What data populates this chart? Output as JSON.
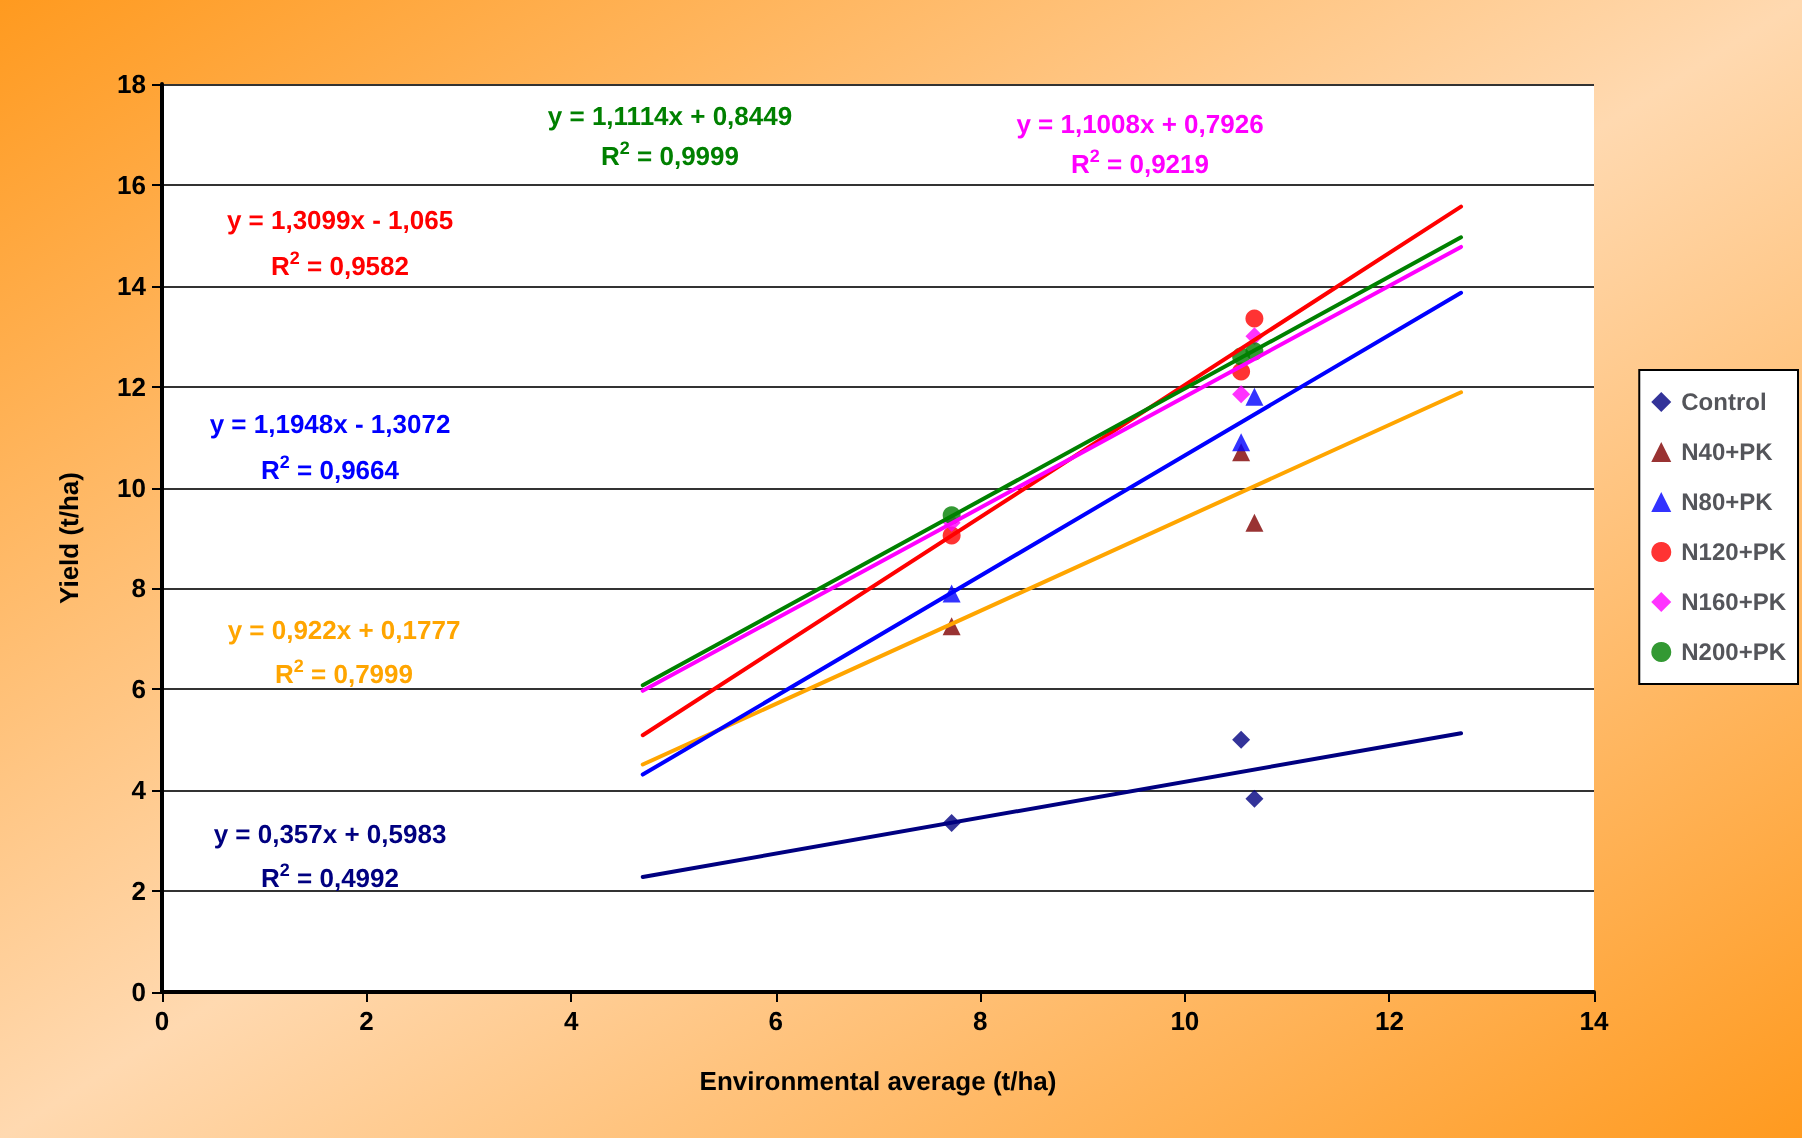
{
  "chart_data": {
    "type": "scatter",
    "xlabel": "Environmental average (t/ha)",
    "ylabel": "Yield (t/ha)",
    "xlim": [
      0,
      14
    ],
    "xticks": [
      0,
      2,
      4,
      6,
      8,
      10,
      12,
      14
    ],
    "ylim": [
      0,
      18
    ],
    "yticks": [
      0,
      2,
      4,
      6,
      8,
      10,
      12,
      14,
      16,
      18
    ],
    "grid": "y",
    "legend": "right",
    "series": [
      {
        "name": "Control",
        "marker": "diamond",
        "color": "#000080",
        "x": [
          7.72,
          10.55,
          10.68
        ],
        "values": [
          3.35,
          5.0,
          3.83
        ]
      },
      {
        "name": "N40+PK",
        "marker": "triangle",
        "color": "#800000",
        "x": [
          7.72,
          10.55,
          10.68
        ],
        "values": [
          7.25,
          10.7,
          9.3
        ]
      },
      {
        "name": "N80+PK",
        "marker": "triangle",
        "color": "#0000ff",
        "x": [
          7.72,
          10.55,
          10.68
        ],
        "values": [
          7.9,
          10.9,
          11.8
        ]
      },
      {
        "name": "N120+PK",
        "marker": "circle",
        "color": "#ff0000",
        "x": [
          7.72,
          10.55,
          10.68
        ],
        "values": [
          9.05,
          12.3,
          13.35
        ]
      },
      {
        "name": "N160+PK",
        "marker": "diamond",
        "color": "#ff00ff",
        "x": [
          7.72,
          10.55,
          10.68
        ],
        "values": [
          9.3,
          11.85,
          13.0
        ]
      },
      {
        "name": "N200+PK",
        "marker": "circle",
        "color": "#008000",
        "x": [
          7.72,
          10.55,
          10.68
        ],
        "values": [
          9.45,
          12.6,
          12.7
        ]
      },
      {
        "type": "line",
        "marker": "none",
        "line_style": "solid",
        "color": "#000080",
        "x": [
          4.7,
          12.7
        ],
        "values": [
          2.28,
          5.13
        ]
      },
      {
        "type": "line",
        "marker": "none",
        "line_style": "solid",
        "color": "#ffa500",
        "x": [
          4.7,
          12.7
        ],
        "values": [
          4.51,
          11.89
        ]
      },
      {
        "type": "line",
        "marker": "none",
        "line_style": "solid",
        "color": "#0000ff",
        "x": [
          4.7,
          12.7
        ],
        "values": [
          4.31,
          13.86
        ]
      },
      {
        "type": "line",
        "marker": "none",
        "line_style": "solid",
        "color": "#ff0000",
        "x": [
          4.7,
          12.7
        ],
        "values": [
          5.09,
          15.57
        ]
      },
      {
        "type": "line",
        "marker": "none",
        "line_style": "solid",
        "color": "#ff00ff",
        "x": [
          4.7,
          12.7
        ],
        "values": [
          5.97,
          14.77
        ]
      },
      {
        "type": "line",
        "marker": "none",
        "line_style": "solid",
        "color": "#008000",
        "x": [
          4.7,
          12.7
        ],
        "values": [
          6.08,
          14.96
        ]
      }
    ],
    "annotations": [
      "y = 0,357x + 0,5983",
      "R$^{2}$ = 0,4992",
      "y = 0,922x + 0,1777",
      "R$^{2}$ = 0,7999",
      "y = 1,1948x - 1,3072",
      "R$^{2}$ = 0,9664",
      "y = 1,3099x - 1,065",
      "R$^{2}$ = 0,9582",
      "y = 1,1008x + 0,7926",
      "R$^{2}$ = 0,9219",
      "y = 1,1114x + 0,8449",
      "R$^{2}$ = 0,9999"
    ]
  }
}
